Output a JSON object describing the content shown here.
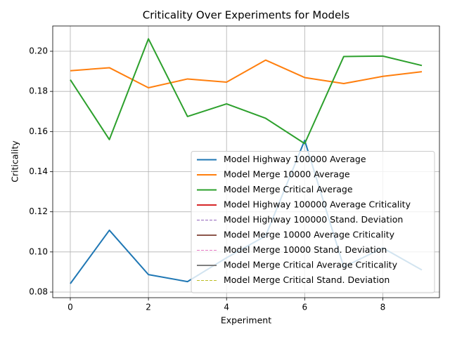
{
  "chart_data": {
    "type": "line",
    "title": "Criticality Over Experiments for Models",
    "x_label": "Experiment",
    "y_label": "Criticality",
    "x": [
      0,
      1,
      2,
      3,
      4,
      5,
      6,
      7,
      8,
      9
    ],
    "xlim": [
      -0.45,
      9.45
    ],
    "xticks": [
      0,
      2,
      4,
      6,
      8
    ],
    "ylim": [
      0.0772,
      0.2126
    ],
    "yticks": [
      0.08,
      {
        "value": 0.1,
        "label": "0.10"
      },
      0.12,
      0.14,
      0.16,
      0.18,
      {
        "value": 0.2,
        "label": "0.20"
      }
    ],
    "grid": true,
    "legend": "lower right",
    "series": [
      {
        "name": "Model Highway 100000 Average",
        "color": "#1f77b4",
        "linestyle": "solid",
        "values": [
          0.0842,
          0.1108,
          0.0887,
          0.0852,
          0.0971,
          0.108,
          0.1556,
          0.0925,
          0.102,
          0.091
        ]
      },
      {
        "name": "Model Merge 10000 Average",
        "color": "#ff7f0e",
        "linestyle": "solid",
        "values": [
          0.1903,
          0.1918,
          0.1818,
          0.1862,
          0.1846,
          0.1956,
          0.1869,
          0.1839,
          0.1875,
          0.1898
        ]
      },
      {
        "name": "Model Merge Critical Average",
        "color": "#2ca02c",
        "linestyle": "solid",
        "values": [
          0.1858,
          0.156,
          0.2062,
          0.1675,
          0.1738,
          0.1666,
          0.154,
          0.1974,
          0.1976,
          0.1929
        ]
      },
      {
        "name": "Model Highway 100000 Average Criticality",
        "color": "#d62728",
        "linestyle": "solid",
        "values": [
          null,
          null,
          null,
          null,
          null,
          null,
          null,
          null,
          null,
          null
        ]
      },
      {
        "name": "Model Highway 100000 Stand. Deviation",
        "color": "#9467bd",
        "linestyle": "dashed",
        "values": [
          null,
          null,
          null,
          null,
          null,
          null,
          null,
          null,
          null,
          null
        ]
      },
      {
        "name": "Model Merge 10000 Average Criticality",
        "color": "#8c564b",
        "linestyle": "solid",
        "values": [
          null,
          null,
          null,
          null,
          null,
          null,
          null,
          null,
          null,
          null
        ]
      },
      {
        "name": "Model Merge 10000 Stand. Deviation",
        "color": "#e377c2",
        "linestyle": "dashed",
        "values": [
          null,
          null,
          null,
          null,
          null,
          null,
          null,
          null,
          null,
          null
        ]
      },
      {
        "name": "Model Merge Critical Average Criticality",
        "color": "#7f7f7f",
        "linestyle": "solid",
        "values": [
          null,
          null,
          null,
          null,
          null,
          null,
          null,
          null,
          null,
          null
        ]
      },
      {
        "name": "Model Merge Critical Stand. Deviation",
        "color": "#bcbd22",
        "linestyle": "dashed",
        "values": [
          null,
          null,
          null,
          null,
          null,
          null,
          null,
          null,
          null,
          null
        ]
      }
    ]
  }
}
